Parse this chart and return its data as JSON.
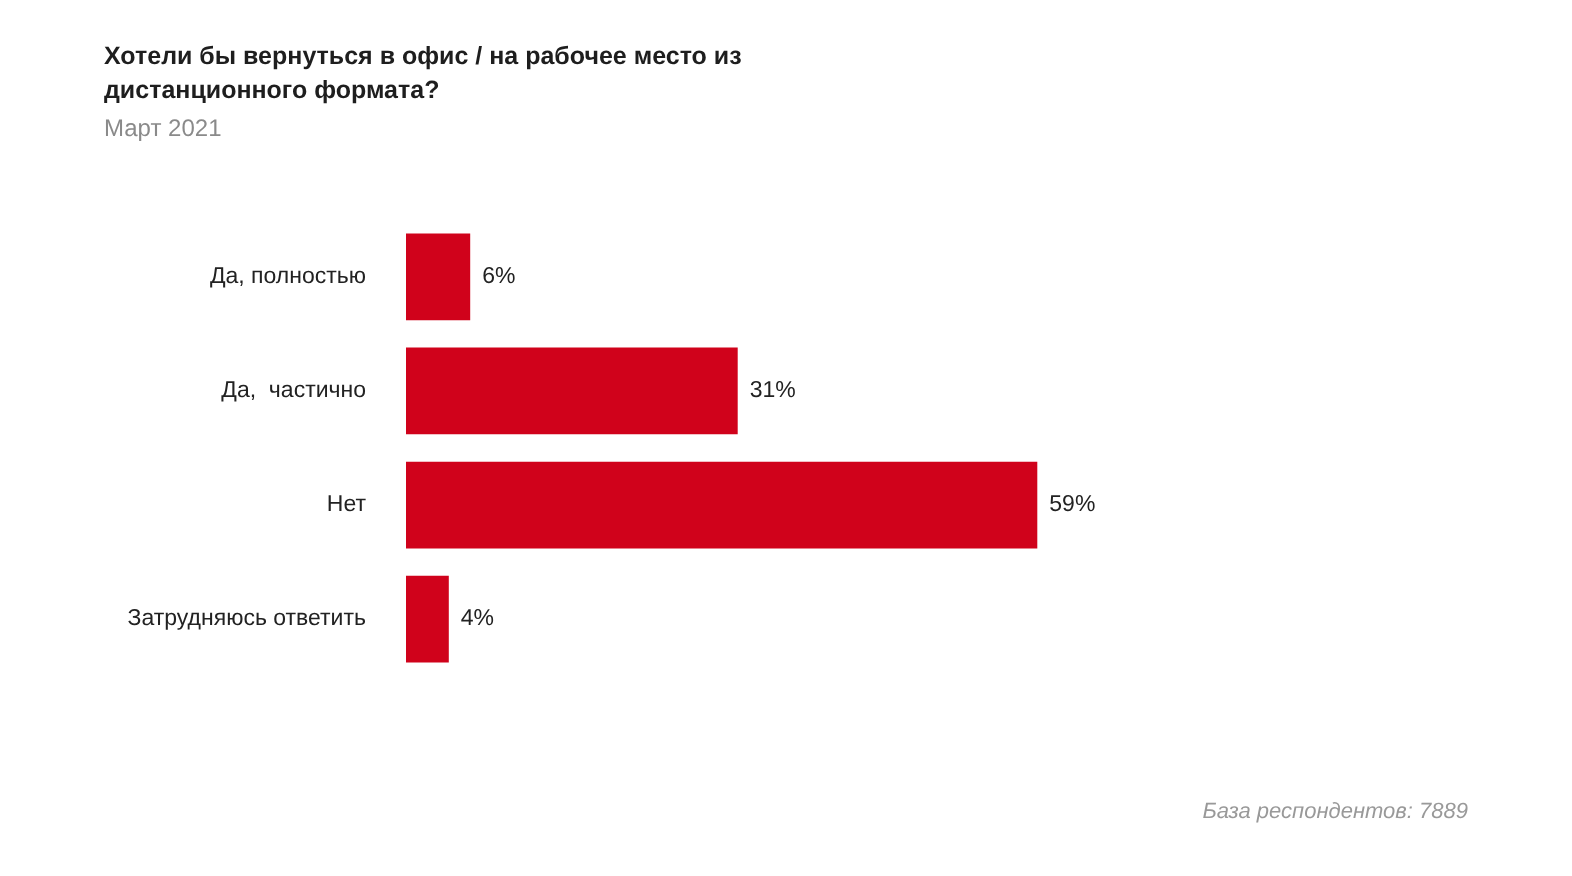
{
  "chart_data": {
    "type": "bar",
    "orientation": "horizontal",
    "title": "Хотели бы вернуться в офис / на рабочее место из дистанционного формата?",
    "subtitle": "Март 2021",
    "categories": [
      "Да, полностью",
      "Да,  частично",
      "Нет",
      "Затрудняюсь ответить"
    ],
    "values": [
      6,
      31,
      59,
      4
    ],
    "color": "#d0021b",
    "value_labels": [
      "6%",
      "31%",
      "59%",
      "4%"
    ],
    "legend": false,
    "tick_labels": "y",
    "annotations": [
      "База респондентов: 7889"
    ]
  }
}
